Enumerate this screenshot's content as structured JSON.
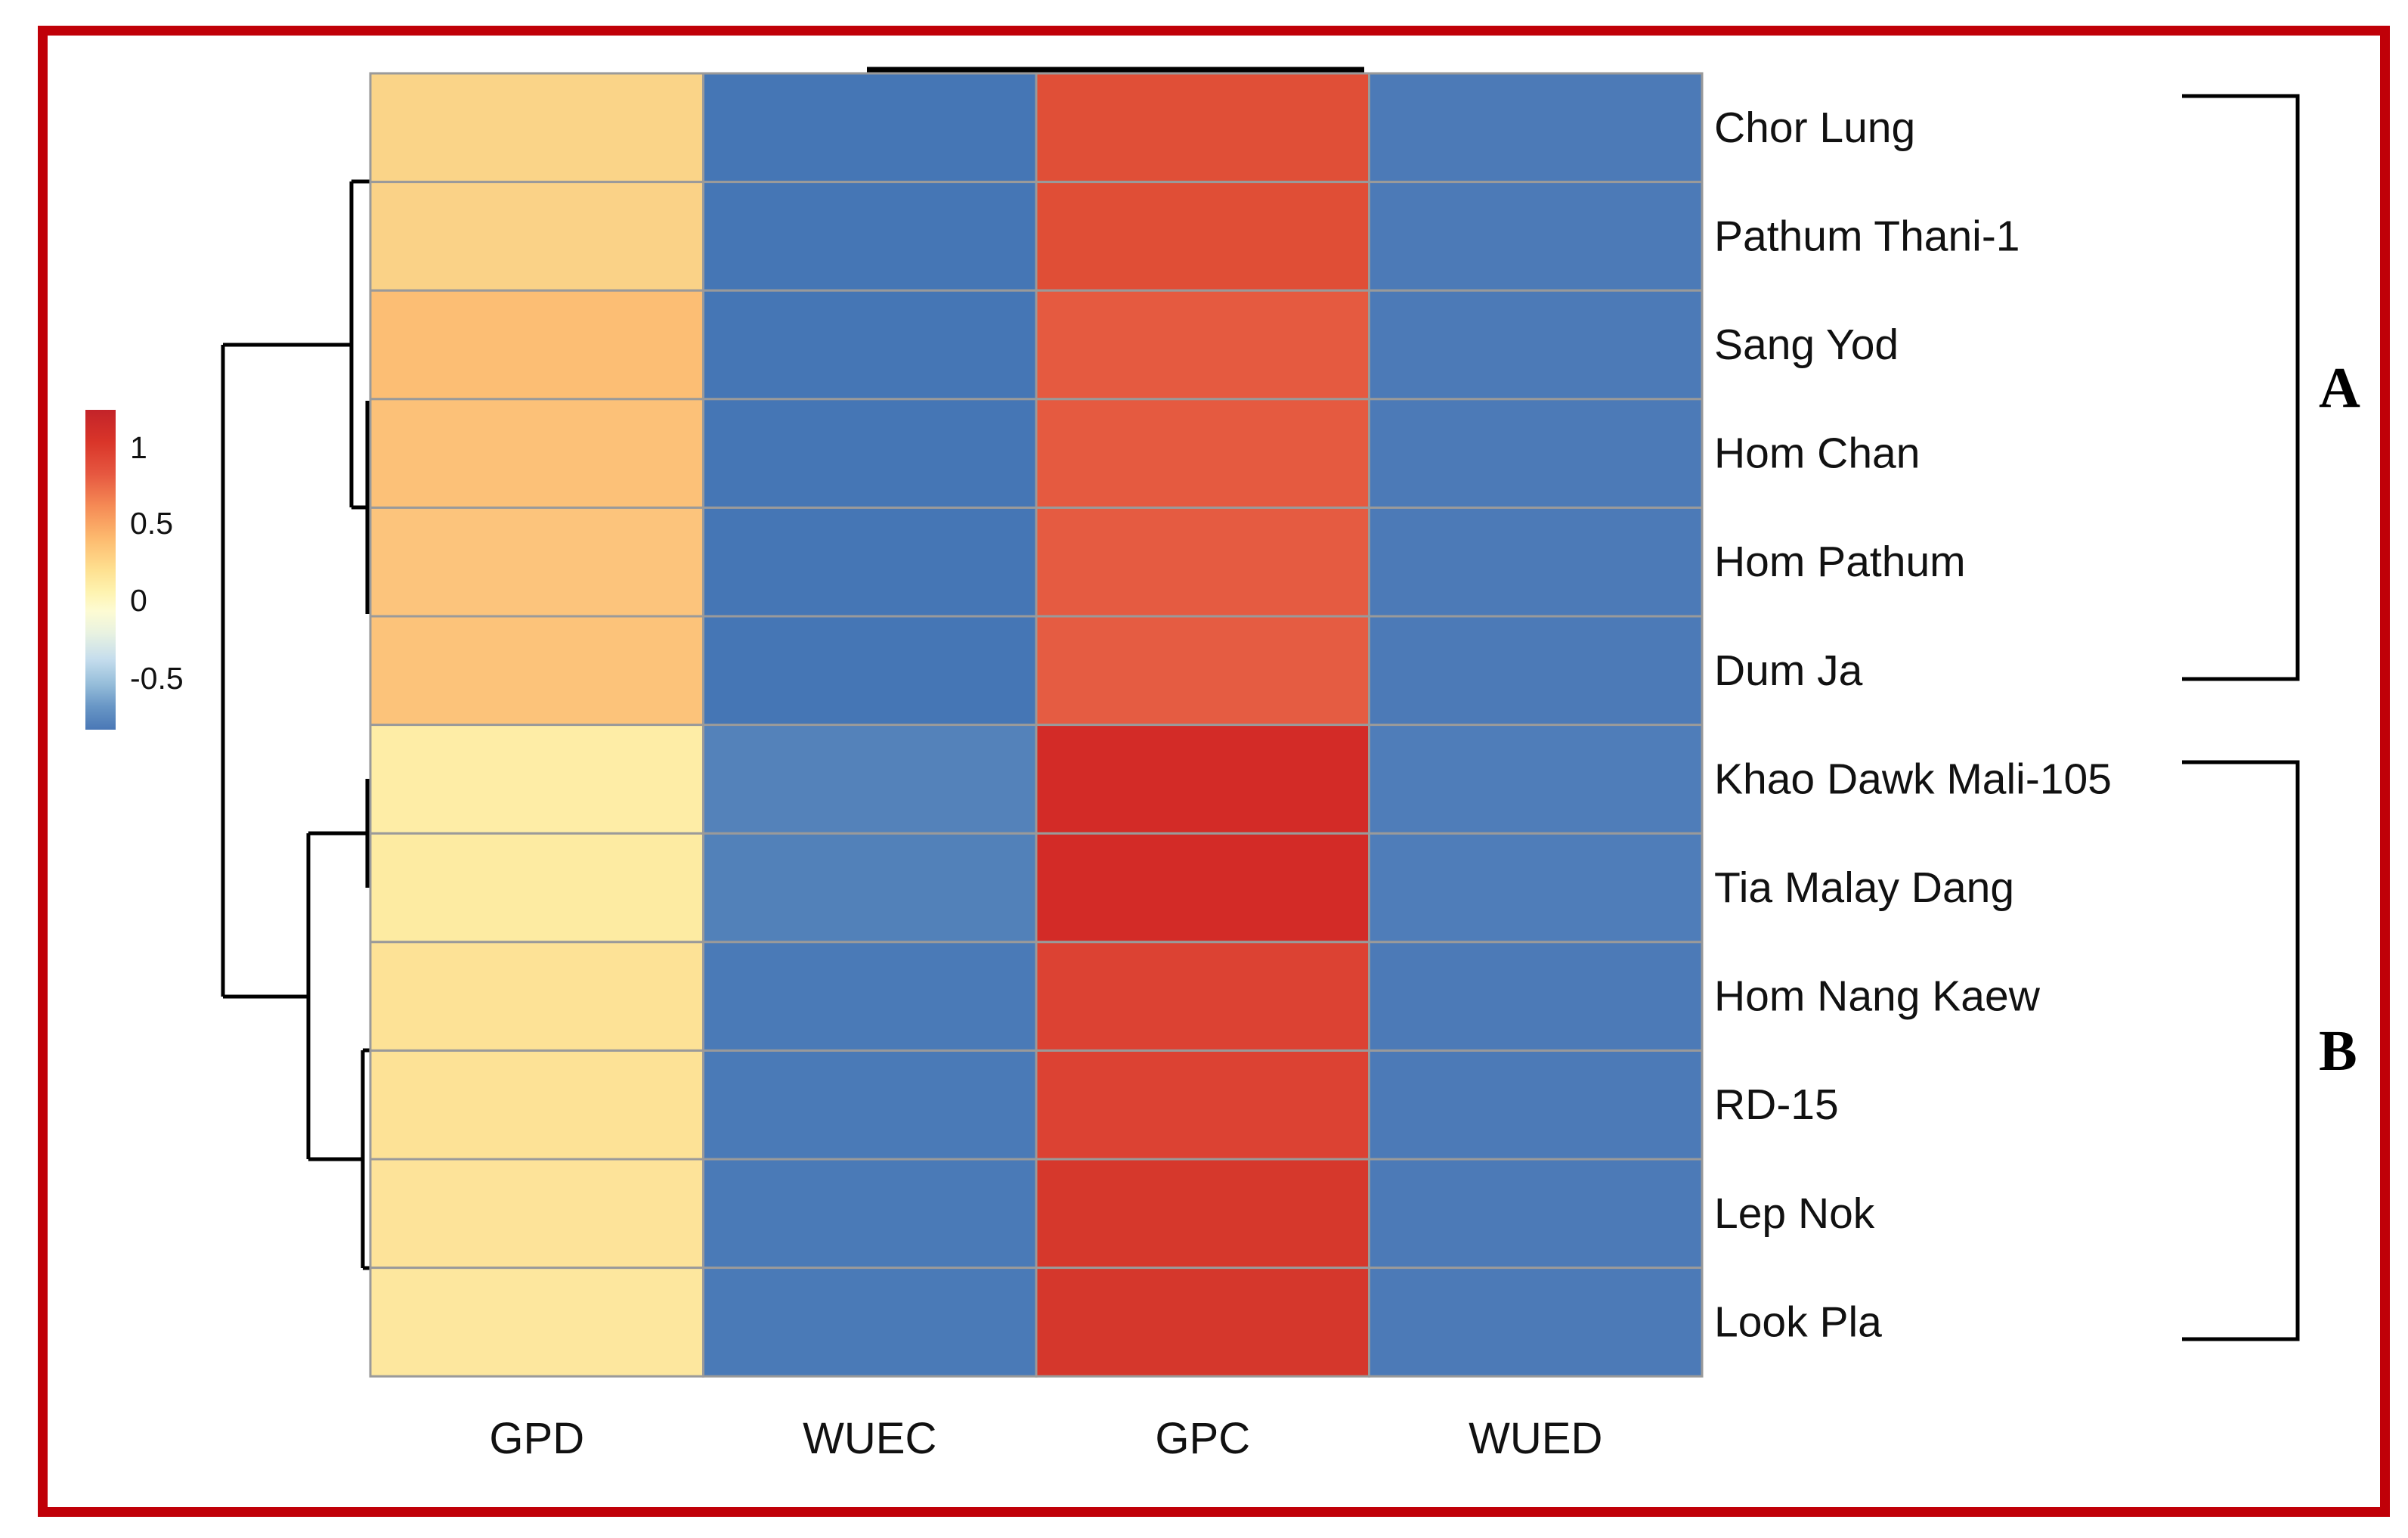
{
  "figure": {
    "border_color": "#c00008",
    "background_color": "#ffffff",
    "description": "Clustered heatmap of rice varieties (rows) vs traits (columns) with row dendrogram, color scale legend and two cluster brackets"
  },
  "legend": {
    "ticks": [
      "1",
      "0.5",
      "0",
      "-0.5"
    ],
    "gradient_top_color": "#c32329",
    "gradient_bottom_color": "#4a78b6"
  },
  "clusters": [
    {
      "label": "A",
      "rows": [
        "Chor Lung",
        "Pathum Thani-1",
        "Sang Yod",
        "Hom Chan",
        "Hom Pathum",
        "Dum Ja"
      ]
    },
    {
      "label": "B",
      "rows": [
        "Khao Dawk Mali-105",
        "Tia Malay Dang",
        "Hom Nang Kaew",
        "RD-15",
        "Lep Nok",
        "Look Pla"
      ]
    }
  ],
  "chart_data": {
    "type": "heatmap",
    "title": "",
    "columns": [
      "GPD",
      "WUEC",
      "GPC",
      "WUED"
    ],
    "rows": [
      "Chor Lung",
      "Pathum Thani-1",
      "Sang Yod",
      "Hom Chan",
      "Hom Pathum",
      "Dum Ja",
      "Khao Dawk Mali-105",
      "Tia Malay Dang",
      "Hom Nang Kaew",
      "RD-15",
      "Lep Nok",
      "Look Pla"
    ],
    "values": [
      [
        0.55,
        -0.82,
        1.02,
        -0.78
      ],
      [
        0.56,
        -0.82,
        1.03,
        -0.78
      ],
      [
        0.75,
        -0.82,
        0.95,
        -0.78
      ],
      [
        0.72,
        -0.82,
        0.95,
        -0.78
      ],
      [
        0.7,
        -0.82,
        0.94,
        -0.78
      ],
      [
        0.71,
        -0.82,
        0.93,
        -0.78
      ],
      [
        0.3,
        -0.65,
        1.22,
        -0.76
      ],
      [
        0.32,
        -0.67,
        1.22,
        -0.76
      ],
      [
        0.45,
        -0.75,
        1.08,
        -0.78
      ],
      [
        0.45,
        -0.75,
        1.08,
        -0.78
      ],
      [
        0.44,
        -0.75,
        1.15,
        -0.78
      ],
      [
        0.4,
        -0.75,
        1.16,
        -0.78
      ]
    ],
    "cell_colors": [
      [
        "#fad488",
        "#4576b5",
        "#e04f37",
        "#4c7ab7"
      ],
      [
        "#fad287",
        "#4576b5",
        "#e04e36",
        "#4c7ab7"
      ],
      [
        "#fcbe74",
        "#4576b5",
        "#e55a40",
        "#4c7ab7"
      ],
      [
        "#fcc178",
        "#4576b5",
        "#e55a40",
        "#4c7ab7"
      ],
      [
        "#fcc47c",
        "#4576b5",
        "#e55b41",
        "#4c7ab7"
      ],
      [
        "#fcc37a",
        "#4576b5",
        "#e55c42",
        "#4c7ab7"
      ],
      [
        "#feeda6",
        "#5482ba",
        "#d32b27",
        "#4f7db9"
      ],
      [
        "#fdeba2",
        "#5281b9",
        "#d32b27",
        "#4f7db9"
      ],
      [
        "#fde296",
        "#4a7ab7",
        "#dc4233",
        "#4c7ab7"
      ],
      [
        "#fde296",
        "#4a7ab7",
        "#dc4233",
        "#4c7ab7"
      ],
      [
        "#fde399",
        "#4a7ab7",
        "#d6382c",
        "#4c7ab7"
      ],
      [
        "#fde79e",
        "#4a7ab7",
        "#d5372c",
        "#4c7ab7"
      ]
    ],
    "colorscale": {
      "tick_values": [
        1,
        0.5,
        0,
        -0.5
      ],
      "range_top": 1.25,
      "range_bottom": -0.85,
      "scheme": "red-yellow-blue diverging"
    },
    "row_clusters": {
      "A": [
        "Chor Lung",
        "Pathum Thani-1",
        "Sang Yod",
        "Hom Chan",
        "Hom Pathum",
        "Dum Ja"
      ],
      "B": [
        "Khao Dawk Mali-105",
        "Tia Malay Dang",
        "Hom Nang Kaew",
        "RD-15",
        "Lep Nok",
        "Look Pla"
      ]
    },
    "legend_position": "left",
    "row_dendrogram": true,
    "column_dendrogram": true,
    "grid": true
  }
}
